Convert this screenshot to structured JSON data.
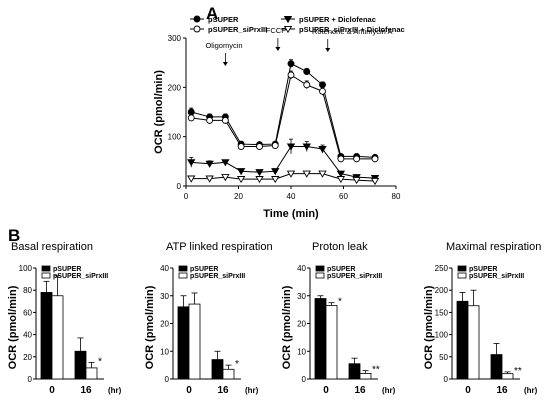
{
  "chart_data": [
    {
      "type": "line",
      "panel": "A",
      "xlabel": "Time (min)",
      "ylabel": "OCR (pmol/min)",
      "xlim": [
        0,
        80
      ],
      "ylim": [
        0,
        300
      ],
      "xticks": [
        0,
        20,
        40,
        60,
        80
      ],
      "yticks": [
        0,
        100,
        200,
        300
      ],
      "legend_placement": "top",
      "annotations": [
        {
          "text": "Oligomycin",
          "x": 15
        },
        {
          "text": "FCCP",
          "x": 35
        },
        {
          "text": "Rotenone & Antimycin A",
          "x": 54
        }
      ],
      "x": [
        2,
        9,
        15,
        21,
        28,
        34,
        40,
        46,
        52,
        59,
        65,
        72
      ],
      "series": [
        {
          "name": "pSUPER",
          "marker": "filled-circle",
          "values": [
            150,
            140,
            140,
            85,
            84,
            85,
            248,
            232,
            205,
            60,
            60,
            58
          ],
          "errors": [
            8,
            6,
            6,
            4,
            4,
            4,
            8,
            6,
            6,
            4,
            3,
            3
          ]
        },
        {
          "name": "pSUPER_siPrxIII",
          "marker": "open-circle",
          "values": [
            138,
            133,
            133,
            80,
            80,
            82,
            225,
            205,
            192,
            55,
            55,
            55
          ],
          "errors": [
            6,
            6,
            6,
            4,
            4,
            4,
            8,
            8,
            8,
            3,
            3,
            3
          ]
        },
        {
          "name": "pSUPER + Diclofenac",
          "marker": "filled-triangle-down",
          "values": [
            48,
            45,
            48,
            30,
            28,
            30,
            80,
            80,
            75,
            25,
            18,
            16
          ],
          "errors": [
            10,
            6,
            4,
            3,
            3,
            3,
            15,
            10,
            8,
            3,
            3,
            3
          ]
        },
        {
          "name": "pSUPER_siPrxIII + Diclofenac",
          "marker": "open-triangle-down",
          "values": [
            15,
            15,
            18,
            14,
            14,
            14,
            25,
            25,
            25,
            14,
            12,
            10
          ],
          "errors": [
            3,
            3,
            3,
            2,
            2,
            2,
            4,
            4,
            4,
            2,
            2,
            2
          ]
        }
      ]
    },
    {
      "type": "bar",
      "panel": "B",
      "subtitle": "Basal respiration",
      "ylabel": "OCR (pmol/min)",
      "unit": "(hr)",
      "categories": [
        "0",
        "16"
      ],
      "ylim": [
        0,
        100
      ],
      "yticks": [
        0,
        20,
        40,
        60,
        80,
        100
      ],
      "series": [
        {
          "name": "pSUPER",
          "values": [
            78,
            25
          ],
          "errors": [
            10,
            12
          ]
        },
        {
          "name": "pSUPER_siPrxIII",
          "values": [
            75,
            10
          ],
          "errors": [
            18,
            5
          ]
        }
      ],
      "significance": [
        {
          "category": "16",
          "series": "pSUPER_siPrxIII",
          "text": "*"
        }
      ]
    },
    {
      "type": "bar",
      "subtitle": "ATP linked respiration",
      "ylabel": "OCR (pmol/min)",
      "unit": "(hr)",
      "categories": [
        "0",
        "16"
      ],
      "ylim": [
        0,
        40
      ],
      "yticks": [
        0,
        10,
        20,
        30,
        40
      ],
      "series": [
        {
          "name": "pSUPER",
          "values": [
            26,
            7
          ],
          "errors": [
            4,
            3
          ]
        },
        {
          "name": "pSUPER_siPrxIII",
          "values": [
            27,
            3.5
          ],
          "errors": [
            4,
            1.5
          ]
        }
      ],
      "significance": [
        {
          "category": "16",
          "series": "pSUPER_siPrxIII",
          "text": "*"
        }
      ]
    },
    {
      "type": "bar",
      "subtitle": "Proton leak",
      "ylabel": "OCR (pmol/min)",
      "unit": "(hr)",
      "categories": [
        "0",
        "16"
      ],
      "ylim": [
        0,
        40
      ],
      "yticks": [
        0,
        10,
        20,
        30,
        40
      ],
      "series": [
        {
          "name": "pSUPER",
          "values": [
            29,
            5.5
          ],
          "errors": [
            1,
            2
          ]
        },
        {
          "name": "pSUPER_siPrxIII",
          "values": [
            26.5,
            2
          ],
          "errors": [
            1,
            1
          ]
        }
      ],
      "significance": [
        {
          "category": "0",
          "series": "pSUPER_siPrxIII",
          "text": "*"
        },
        {
          "category": "16",
          "series": "pSUPER_siPrxIII",
          "text": "**"
        }
      ]
    },
    {
      "type": "bar",
      "subtitle": "Maximal respiration",
      "ylabel": "OCR (pmol/min)",
      "unit": "(hr)",
      "categories": [
        "0",
        "16"
      ],
      "ylim": [
        0,
        250
      ],
      "yticks": [
        0,
        50,
        100,
        150,
        200,
        250
      ],
      "series": [
        {
          "name": "pSUPER",
          "values": [
            175,
            55
          ],
          "errors": [
            20,
            25
          ]
        },
        {
          "name": "pSUPER_siPrxIII",
          "values": [
            165,
            12
          ],
          "errors": [
            35,
            4
          ]
        }
      ],
      "significance": [
        {
          "category": "16",
          "series": "pSUPER_siPrxIII",
          "text": "**"
        }
      ]
    }
  ],
  "colors": {
    "filled": "#000000",
    "open": "#ffffff",
    "axis": "#000000"
  }
}
